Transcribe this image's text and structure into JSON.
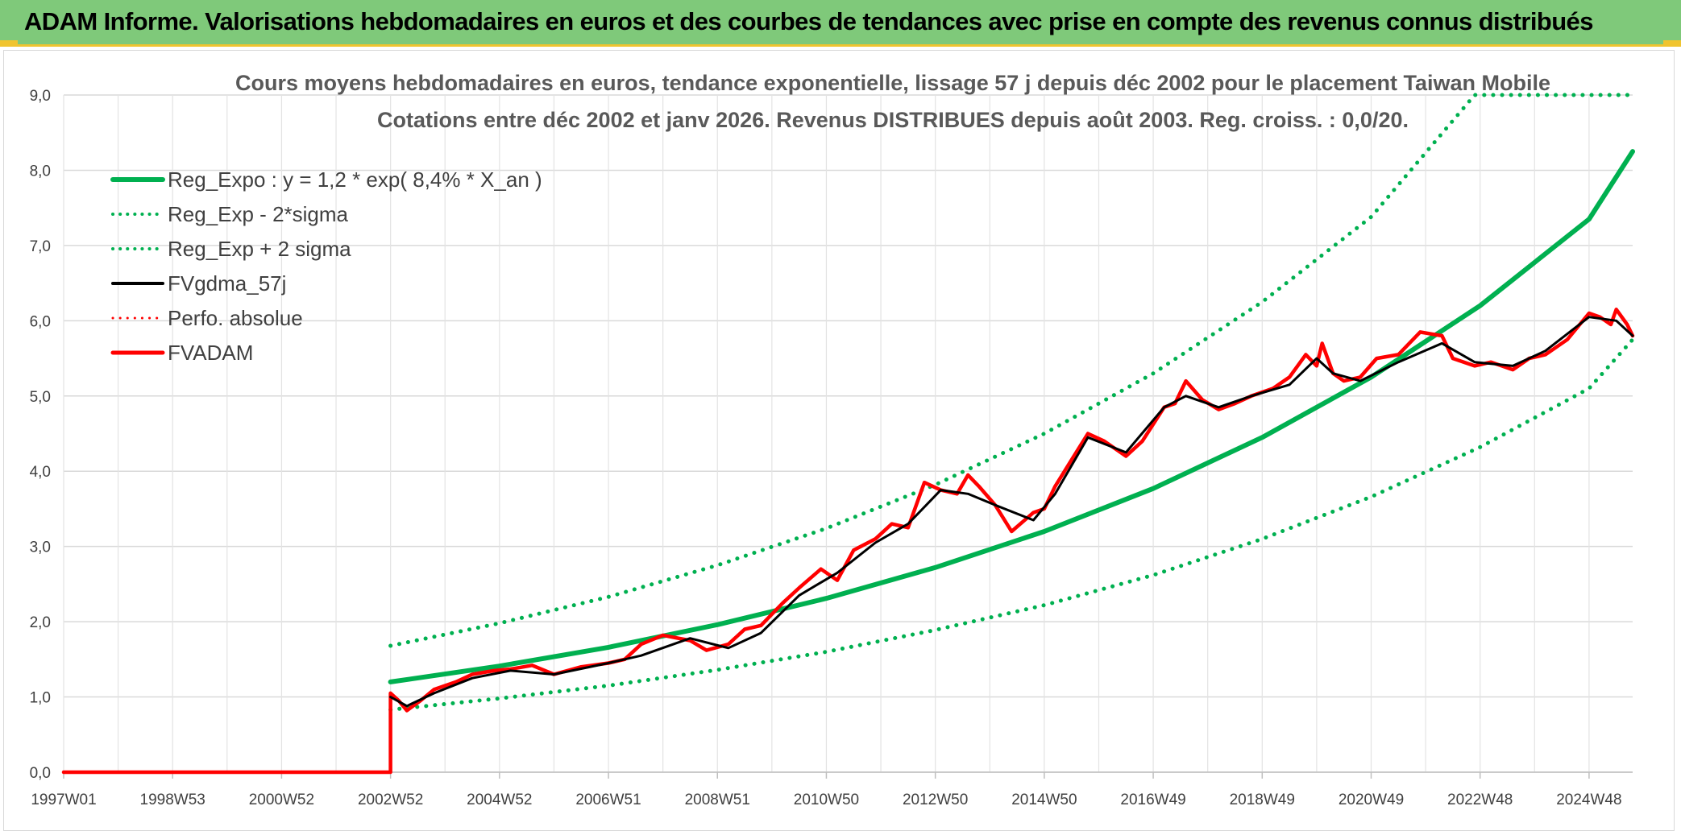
{
  "banner": {
    "title": "ADAM Informe. Valorisations hebdomadaires en euros et des courbes de tendances avec prise en compte des revenus connus distribués"
  },
  "chart_data": {
    "type": "line",
    "title_line1": "Cours moyens hebdomadaires en euros, tendance exponentielle, lissage 57 j depuis déc 2002 pour le placement Taiwan Mobile",
    "title_line2": "Cotations entre déc 2002 et janv 2026. Revenus DISTRIBUES depuis août 2003. Reg. croiss. : 0,0/20.",
    "x_range": [
      1997.0,
      2025.8
    ],
    "ylim": [
      0,
      9
    ],
    "y_ticks": [
      "0,0",
      "1,0",
      "2,0",
      "3,0",
      "4,0",
      "5,0",
      "6,0",
      "7,0",
      "8,0",
      "9,0"
    ],
    "x_tick_labels": [
      "1997W01",
      "1998W53",
      "2000W52",
      "2002W52",
      "2004W52",
      "2006W51",
      "2008W51",
      "2010W50",
      "2012W50",
      "2014W50",
      "2016W49",
      "2018W49",
      "2020W49",
      "2022W48",
      "2024W48"
    ],
    "x_tick_years": [
      1997.0,
      1999.0,
      2001.0,
      2003.0,
      2005.0,
      2007.0,
      2009.0,
      2011.0,
      2013.0,
      2015.0,
      2017.0,
      2019.0,
      2021.0,
      2023.0,
      2025.0
    ],
    "grid": true,
    "legend_position": "top-left",
    "colors": {
      "reg": "#00b050",
      "band": "#00b050",
      "smooth": "#000000",
      "perfo": "#ff0000",
      "fvadam": "#ff0000"
    },
    "legend": [
      {
        "label": "Reg_Expo : y = 1,2 * exp( 8,4% *  X_an )",
        "style": "solid",
        "color": "#00b050",
        "width": 6
      },
      {
        "label": "Reg_Exp - 2*sigma",
        "style": "dotted",
        "color": "#00b050",
        "width": 4
      },
      {
        "label": "Reg_Exp + 2 sigma",
        "style": "dotted",
        "color": "#00b050",
        "width": 4
      },
      {
        "label": "FVgdma_57j",
        "style": "solid",
        "color": "#000000",
        "width": 4
      },
      {
        "label": "Perfo. absolue",
        "style": "dotted",
        "color": "#ff0000",
        "width": 3
      },
      {
        "label": "FVADAM",
        "style": "solid",
        "color": "#ff0000",
        "width": 5
      }
    ],
    "series": [
      {
        "name": "Reg_Expo : y = 1,2 * exp( 8,4% *  X_an )",
        "x": [
          2003.0,
          2005.0,
          2007.0,
          2009.0,
          2011.0,
          2013.0,
          2015.0,
          2017.0,
          2019.0,
          2021.0,
          2023.0,
          2025.0,
          2025.8
        ],
        "y": [
          1.2,
          1.41,
          1.66,
          1.96,
          2.31,
          2.72,
          3.2,
          3.77,
          4.45,
          5.25,
          6.2,
          7.35,
          8.25
        ]
      },
      {
        "name": "Reg_Exp - 2*sigma",
        "x": [
          2003.0,
          2005.0,
          2007.0,
          2009.0,
          2011.0,
          2013.0,
          2015.0,
          2017.0,
          2019.0,
          2021.0,
          2023.0,
          2025.0,
          2025.8
        ],
        "y": [
          0.83,
          0.98,
          1.15,
          1.36,
          1.6,
          1.89,
          2.22,
          2.62,
          3.1,
          3.66,
          4.32,
          5.1,
          5.75
        ]
      },
      {
        "name": "Reg_Exp + 2 sigma",
        "x": [
          2003.0,
          2005.0,
          2007.0,
          2009.0,
          2011.0,
          2013.0,
          2015.0,
          2017.0,
          2019.0,
          2021.0,
          2022.9,
          2025.8
        ],
        "y": [
          1.68,
          1.98,
          2.33,
          2.75,
          3.24,
          3.82,
          4.5,
          5.3,
          6.25,
          7.38,
          9.0,
          9.0
        ]
      },
      {
        "name": "FVgdma_57j",
        "x": [
          2003.0,
          2003.3,
          2003.8,
          2004.5,
          2005.2,
          2006.0,
          2007.0,
          2007.6,
          2008.5,
          2009.2,
          2009.8,
          2010.5,
          2011.2,
          2011.9,
          2012.5,
          2013.1,
          2013.6,
          2014.1,
          2014.8,
          2015.2,
          2015.8,
          2016.5,
          2017.2,
          2017.6,
          2018.2,
          2018.8,
          2019.5,
          2020.0,
          2020.3,
          2020.8,
          2021.5,
          2022.3,
          2022.9,
          2023.6,
          2024.2,
          2025.0,
          2025.5,
          2025.8
        ],
        "y": [
          1.0,
          0.88,
          1.05,
          1.25,
          1.35,
          1.3,
          1.45,
          1.55,
          1.78,
          1.65,
          1.85,
          2.35,
          2.65,
          3.05,
          3.3,
          3.75,
          3.7,
          3.55,
          3.35,
          3.7,
          4.45,
          4.25,
          4.85,
          5.0,
          4.85,
          5.0,
          5.15,
          5.5,
          5.3,
          5.2,
          5.45,
          5.7,
          5.45,
          5.4,
          5.6,
          6.05,
          6.0,
          5.8
        ]
      },
      {
        "name": "FVADAM",
        "x": [
          1997.0,
          2003.0,
          2003.0,
          2003.15,
          2003.3,
          2003.55,
          2003.8,
          2004.2,
          2004.5,
          2004.9,
          2005.2,
          2005.6,
          2006.0,
          2006.5,
          2007.0,
          2007.3,
          2007.6,
          2008.0,
          2008.5,
          2008.8,
          2009.2,
          2009.5,
          2009.8,
          2010.2,
          2010.5,
          2010.9,
          2011.2,
          2011.5,
          2011.9,
          2012.2,
          2012.5,
          2012.8,
          2013.1,
          2013.4,
          2013.6,
          2013.8,
          2014.1,
          2014.4,
          2014.8,
          2015.0,
          2015.2,
          2015.5,
          2015.8,
          2016.1,
          2016.5,
          2016.8,
          2017.2,
          2017.4,
          2017.6,
          2017.9,
          2018.2,
          2018.5,
          2018.8,
          2019.2,
          2019.5,
          2019.8,
          2020.0,
          2020.1,
          2020.3,
          2020.5,
          2020.8,
          2021.1,
          2021.5,
          2021.9,
          2022.3,
          2022.5,
          2022.9,
          2023.2,
          2023.6,
          2023.9,
          2024.2,
          2024.6,
          2025.0,
          2025.2,
          2025.4,
          2025.5,
          2025.7,
          2025.8
        ],
        "y": [
          0.0,
          0.0,
          1.05,
          0.95,
          0.82,
          0.95,
          1.1,
          1.2,
          1.3,
          1.35,
          1.37,
          1.42,
          1.3,
          1.4,
          1.45,
          1.5,
          1.7,
          1.82,
          1.75,
          1.62,
          1.7,
          1.9,
          1.95,
          2.25,
          2.45,
          2.7,
          2.55,
          2.95,
          3.1,
          3.3,
          3.25,
          3.85,
          3.75,
          3.7,
          3.95,
          3.8,
          3.55,
          3.2,
          3.45,
          3.5,
          3.8,
          4.15,
          4.5,
          4.4,
          4.2,
          4.4,
          4.85,
          4.9,
          5.2,
          4.95,
          4.82,
          4.9,
          5.0,
          5.1,
          5.25,
          5.55,
          5.4,
          5.7,
          5.3,
          5.2,
          5.25,
          5.5,
          5.55,
          5.85,
          5.8,
          5.5,
          5.4,
          5.45,
          5.35,
          5.5,
          5.55,
          5.75,
          6.1,
          6.05,
          5.95,
          6.15,
          5.95,
          5.8
        ]
      }
    ]
  }
}
